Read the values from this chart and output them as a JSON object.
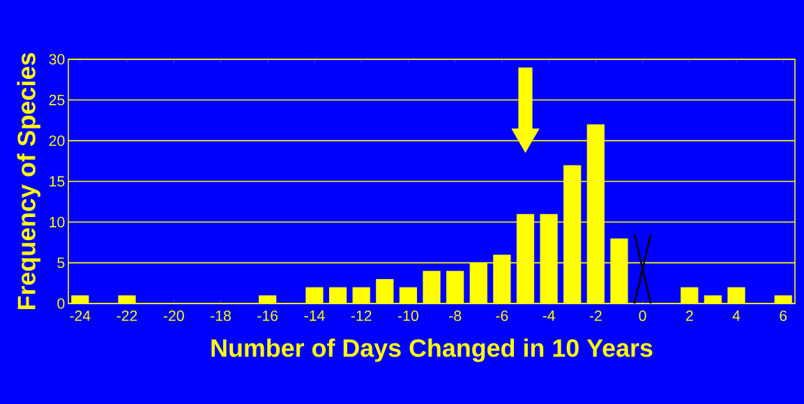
{
  "chart_data": {
    "type": "bar",
    "xlabel": "Number of Days Changed in 10 Years",
    "ylabel": "Frequency of Species",
    "x": [
      -24,
      -23,
      -22,
      -21,
      -20,
      -19,
      -18,
      -17,
      -16,
      -15,
      -14,
      -13,
      -12,
      -11,
      -10,
      -9,
      -8,
      -7,
      -6,
      -5,
      -4,
      -3,
      -2,
      -1,
      0,
      1,
      2,
      3,
      4,
      5,
      6
    ],
    "values": [
      1,
      0,
      1,
      0,
      0,
      0,
      0,
      0,
      1,
      0,
      2,
      2,
      2,
      3,
      2,
      4,
      4,
      5,
      6,
      11,
      11,
      17,
      22,
      8,
      0,
      0,
      2,
      1,
      2,
      0,
      1
    ],
    "color": "#ffff00",
    "xlim": [
      -24.5,
      6.5
    ],
    "ylim": [
      0,
      30
    ],
    "xticks": [
      -24,
      -22,
      -20,
      -18,
      -16,
      -14,
      -12,
      -10,
      -8,
      -6,
      -4,
      -2,
      0,
      2,
      4,
      6
    ],
    "yticks": [
      0,
      5,
      10,
      15,
      20,
      25,
      30
    ],
    "grid": "y"
  }
}
